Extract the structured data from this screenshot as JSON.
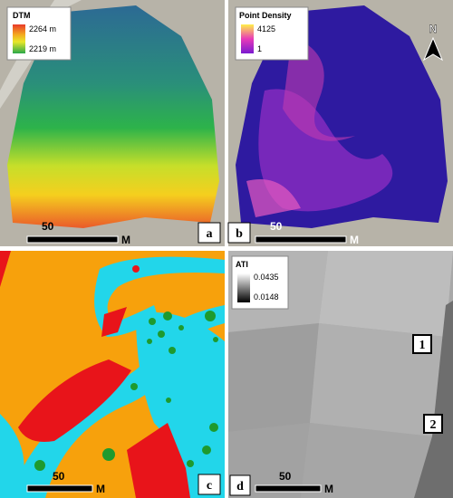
{
  "panels": [
    {
      "label": "a",
      "legend": {
        "title": "DTM",
        "max": "2264 m",
        "min": "2219 m"
      },
      "scale": {
        "distance": "50",
        "unit": "M"
      }
    },
    {
      "label": "b",
      "legend": {
        "title": "Point Density",
        "max": "4125",
        "min": "1"
      },
      "scale": {
        "distance": "50",
        "unit": "M"
      },
      "north": "N"
    },
    {
      "label": "c",
      "scale": {
        "distance": "50",
        "unit": "M"
      }
    },
    {
      "label": "d",
      "legend": {
        "title": "ATI",
        "max": "0.0435",
        "min": "0.0148"
      },
      "scale": {
        "distance": "50",
        "unit": "M"
      },
      "markers": [
        "1",
        "2"
      ]
    }
  ]
}
